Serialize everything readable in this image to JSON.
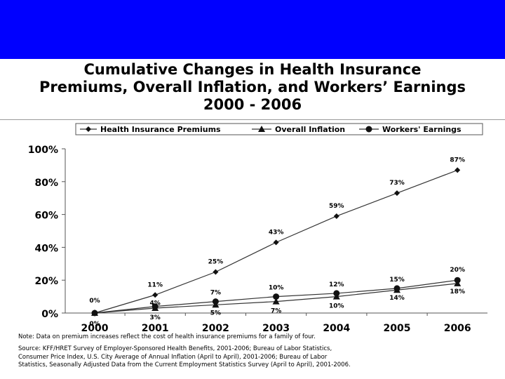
{
  "header": {
    "title_lines": [
      "Cumulative Changes in Health Insurance",
      "Premiums, Overall Inflation, and Workers’ Earnings",
      "2000 - 2006"
    ],
    "band_color": "#0000ff"
  },
  "chart_data": {
    "type": "line",
    "title": "Cumulative Changes in Health Insurance Premiums, Overall Inflation, and Workers’ Earnings 2000 - 2006",
    "x": [
      "2000",
      "2001",
      "2002",
      "2003",
      "2004",
      "2005",
      "2006"
    ],
    "ylim": [
      0,
      100
    ],
    "yticks": [
      "0%",
      "20%",
      "40%",
      "60%",
      "80%",
      "100%"
    ],
    "ytick_values": [
      0,
      20,
      40,
      60,
      80,
      100
    ],
    "legend_position": "top",
    "grid": false,
    "series": [
      {
        "name": "Health Insurance Premiums",
        "marker": "diamond",
        "values": [
          0,
          11,
          25,
          43,
          59,
          73,
          87
        ],
        "labels": [
          "0%",
          "11%",
          "25%",
          "43%",
          "59%",
          "73%",
          "87%"
        ]
      },
      {
        "name": "Overall Inflation",
        "marker": "triangle",
        "values": [
          0,
          3,
          5,
          7,
          10,
          14,
          18
        ],
        "labels": [
          "0%",
          "3%",
          "5%",
          "7%",
          "10%",
          "14%",
          "18%"
        ]
      },
      {
        "name": "Workers' Earnings",
        "marker": "circle",
        "values": [
          0,
          4,
          7,
          10,
          12,
          15,
          20
        ],
        "labels": [
          "",
          "4%",
          "7%",
          "10%",
          "12%",
          "15%",
          "20%"
        ]
      }
    ]
  },
  "footer": {
    "note": "Note:  Data on premium increases reflect the cost of health insurance premiums for a family of four.",
    "source_lines": [
      "Source: KFF/HRET Survey of Employer-Sponsored Health Benefits, 2001-2006; Bureau of Labor Statistics,",
      "Consumer Price Index, U.S. City Average of Annual Inflation (April to April), 2001-2006; Bureau of Labor",
      "Statistics, Seasonally Adjusted Data from the Current Employment Statistics Survey (April to April), 2001-2006."
    ]
  }
}
